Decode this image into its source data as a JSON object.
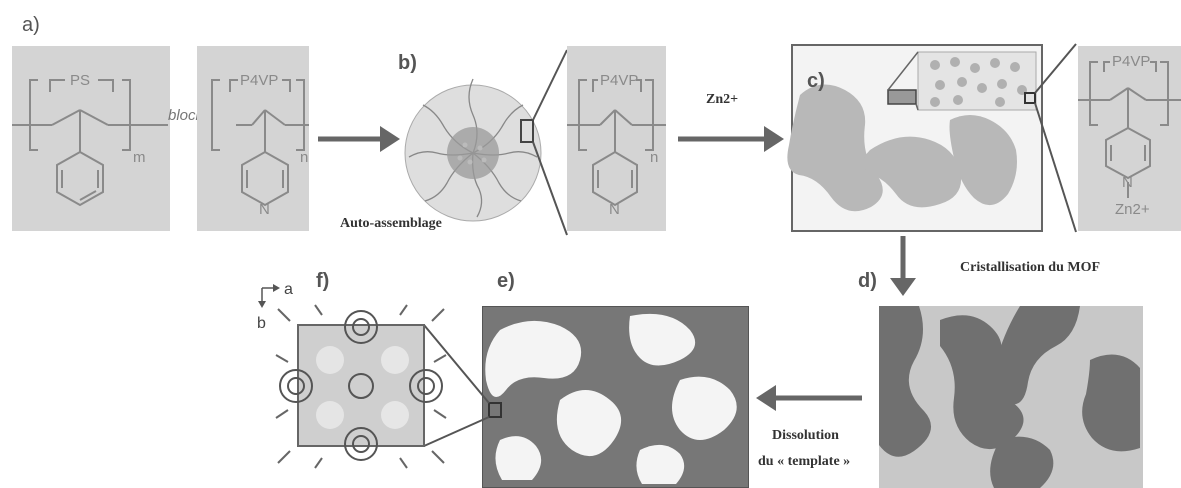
{
  "panels": {
    "a": "a)",
    "b": "b)",
    "c": "c)",
    "d": "d)",
    "e": "e)",
    "f": "f)"
  },
  "chem": {
    "ps_label": "PS",
    "block_label": "block",
    "p4vp_label": "P4VP",
    "sub_m": "m",
    "sub_n": "n",
    "nitrogen": "N",
    "zn_ion": "Zn2+"
  },
  "steps": {
    "self_assembly": "Auto-assemblage",
    "zinc": "Zn2+",
    "mof_crystallization": "Cristallisation du MOF",
    "dissolution_line1": "Dissolution",
    "dissolution_line2": "du « template »"
  },
  "axes": {
    "a": "a",
    "b": "b"
  },
  "colors": {
    "panel_gray": "#d4d4d4",
    "line_gray": "#8a8a8a",
    "arrow_gray": "#666666",
    "mof_dark": "#6e6e6e"
  }
}
